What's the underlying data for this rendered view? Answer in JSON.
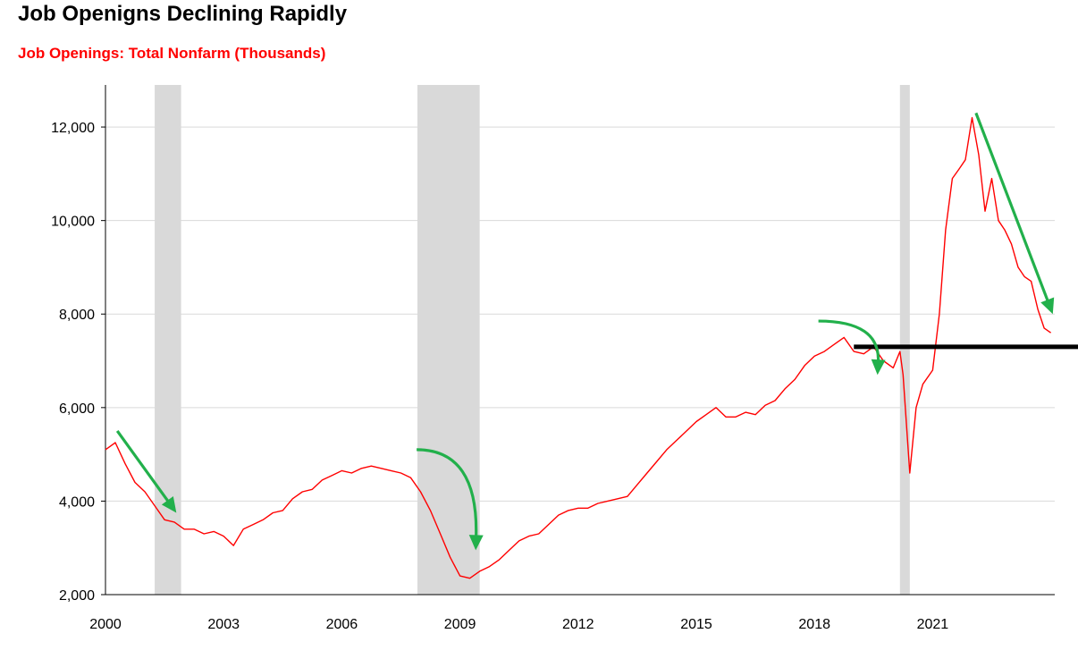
{
  "chart_data": {
    "type": "line",
    "title": "Job Openigns Declining Rapidly",
    "subtitle": "Job Openings: Total Nonfarm (Thousands)",
    "xlabel": "",
    "ylabel": "",
    "xlim": [
      2000,
      2024.1
    ],
    "ylim": [
      2000,
      12900
    ],
    "y_ticks": [
      2000,
      4000,
      6000,
      8000,
      10000,
      12000
    ],
    "y_tick_labels": [
      "2,000",
      "4,000",
      "6,000",
      "8,000",
      "10,000",
      "12,000"
    ],
    "x_ticks": [
      2000,
      2003,
      2006,
      2009,
      2012,
      2015,
      2018,
      2021
    ],
    "x_tick_labels": [
      "2000",
      "2003",
      "2006",
      "2009",
      "2012",
      "2015",
      "2018",
      "2021"
    ],
    "grid": "horizontal",
    "legend": "none",
    "colors": {
      "line": "#ff0000",
      "recession": "#d9d9d9",
      "arrow": "#22b04b",
      "reference_line": "#000000",
      "grid": "#d9d9d9"
    },
    "recessions": [
      [
        2001.25,
        2001.92
      ],
      [
        2007.92,
        2009.5
      ],
      [
        2020.17,
        2020.42
      ]
    ],
    "reference_line": {
      "y": 7300,
      "x_start": 2019.0
    },
    "annotations": [
      {
        "type": "arrow",
        "shape": "straight",
        "from": [
          2000.3,
          5500
        ],
        "to": [
          2001.8,
          3750
        ]
      },
      {
        "type": "arrow",
        "shape": "curved",
        "from": [
          2007.9,
          5100
        ],
        "to": [
          2009.4,
          2950
        ]
      },
      {
        "type": "arrow",
        "shape": "curved",
        "from": [
          2018.1,
          7850
        ],
        "to": [
          2019.6,
          6700
        ]
      },
      {
        "type": "arrow",
        "shape": "straight",
        "from": [
          2022.1,
          12300
        ],
        "to": [
          2024.05,
          8000
        ]
      }
    ],
    "series": [
      {
        "x": [
          2000.0,
          2000.25,
          2000.5,
          2000.75,
          2001.0,
          2001.25,
          2001.5,
          2001.75,
          2002.0,
          2002.25,
          2002.5,
          2002.75,
          2003.0,
          2003.25,
          2003.5,
          2003.75,
          2004.0,
          2004.25,
          2004.5,
          2004.75,
          2005.0,
          2005.25,
          2005.5,
          2005.75,
          2006.0,
          2006.25,
          2006.5,
          2006.75,
          2007.0,
          2007.25,
          2007.5,
          2007.75,
          2008.0,
          2008.25,
          2008.5,
          2008.75,
          2009.0,
          2009.25,
          2009.5,
          2009.75,
          2010.0,
          2010.25,
          2010.5,
          2010.75,
          2011.0,
          2011.25,
          2011.5,
          2011.75,
          2012.0,
          2012.25,
          2012.5,
          2012.75,
          2013.0,
          2013.25,
          2013.5,
          2013.75,
          2014.0,
          2014.25,
          2014.5,
          2014.75,
          2015.0,
          2015.25,
          2015.5,
          2015.75,
          2016.0,
          2016.25,
          2016.5,
          2016.75,
          2017.0,
          2017.25,
          2017.5,
          2017.75,
          2018.0,
          2018.25,
          2018.5,
          2018.75,
          2019.0,
          2019.25,
          2019.5,
          2019.75,
          2020.0,
          2020.17,
          2020.25,
          2020.42,
          2020.58,
          2020.75,
          2021.0,
          2021.17,
          2021.33,
          2021.5,
          2021.67,
          2021.83,
          2022.0,
          2022.17,
          2022.33,
          2022.5,
          2022.67,
          2022.83,
          2023.0,
          2023.17,
          2023.33,
          2023.5,
          2023.67,
          2023.83,
          2024.0
        ],
        "values": [
          5100,
          5250,
          4800,
          4400,
          4200,
          3900,
          3600,
          3550,
          3400,
          3400,
          3300,
          3350,
          3250,
          3050,
          3400,
          3500,
          3600,
          3750,
          3800,
          4050,
          4200,
          4250,
          4450,
          4550,
          4650,
          4600,
          4700,
          4750,
          4700,
          4650,
          4600,
          4500,
          4200,
          3800,
          3300,
          2800,
          2400,
          2350,
          2500,
          2600,
          2750,
          2950,
          3150,
          3250,
          3300,
          3500,
          3700,
          3800,
          3850,
          3850,
          3950,
          4000,
          4050,
          4100,
          4350,
          4600,
          4850,
          5100,
          5300,
          5500,
          5700,
          5850,
          6000,
          5800,
          5800,
          5900,
          5850,
          6050,
          6150,
          6400,
          6600,
          6900,
          7100,
          7200,
          7350,
          7500,
          7200,
          7150,
          7300,
          7000,
          6850,
          7200,
          6700,
          4600,
          6000,
          6500,
          6800,
          8000,
          9800,
          10900,
          11100,
          11300,
          12200,
          11400,
          10200,
          10900,
          10000,
          9800,
          9500,
          9000,
          8800,
          8700,
          8100,
          7700,
          7600
        ]
      }
    ]
  }
}
